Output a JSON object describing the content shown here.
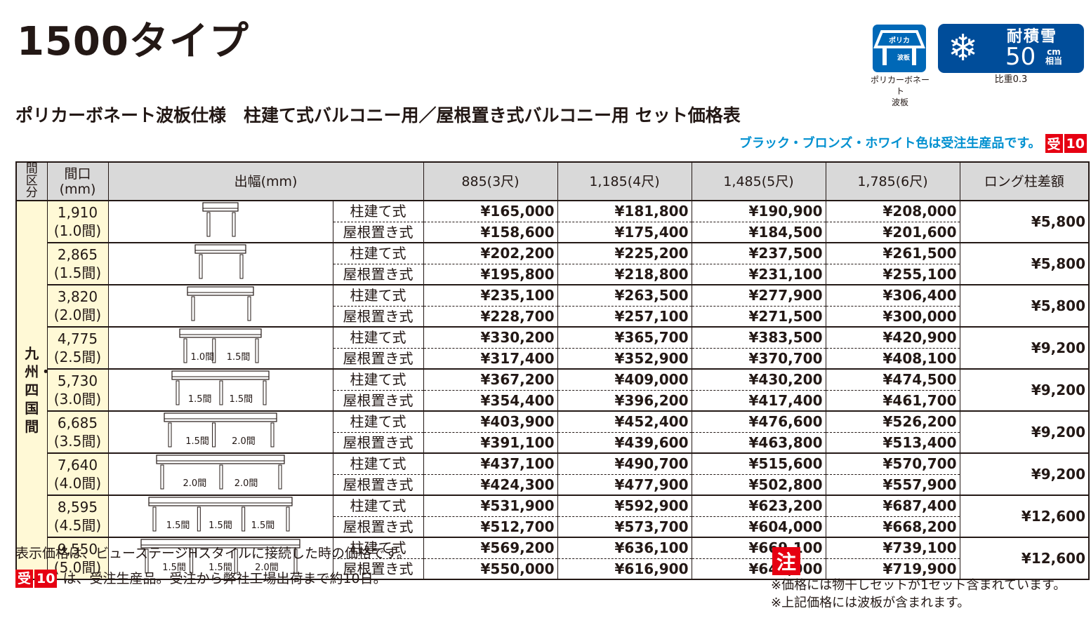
{
  "header": {
    "title": "1500タイプ",
    "subtitle": "ポリカーボネート波板仕様　柱建て式バルコニー用／屋根置き式バルコニー用 セット価格表",
    "order_note": "ブラック・ブロンズ・ホワイト色は受注生産品です。",
    "order_tag": {
      "kanji": "受",
      "days": "10"
    }
  },
  "badges": {
    "polycarbonate": {
      "roof_label": "ポリカ",
      "panel_label": "波板",
      "caption_line1": "ポリカーボネート",
      "caption_line2": "波板",
      "icon": "polycarbonate-roof-icon"
    },
    "snow": {
      "title": "耐積雪",
      "value": "50",
      "unit_top": "cm",
      "unit_bottom": "相当",
      "caption": "比重0.3",
      "icon": "snowflake-icon",
      "glyph": "❄"
    }
  },
  "colors": {
    "brand_blue": "#0068b7",
    "snow_blue": "#004d9a",
    "accent_cyan": "#0090d0",
    "tag_red": "#e60012",
    "region_bg": "#fff9d6",
    "header_bg": "#d9d9d9"
  },
  "table": {
    "headers": {
      "region": "間区分",
      "width": [
        "間口",
        "(mm)"
      ],
      "projection": "出幅(mm)",
      "columns": [
        "885(3尺)",
        "1,185(4尺)",
        "1,485(5尺)",
        "1,785(6尺)"
      ],
      "long_post": "ロング柱差額"
    },
    "region_label": "九州・四国間",
    "types": [
      "柱建て式",
      "屋根置き式"
    ],
    "rows": [
      {
        "width": "1,910",
        "ken": "(1.0間)",
        "spans": [],
        "post": [
          "¥165,000",
          "¥181,800",
          "¥190,900",
          "¥208,000"
        ],
        "roof": [
          "¥158,600",
          "¥175,400",
          "¥184,500",
          "¥201,600"
        ],
        "long_post_diff": "¥5,800"
      },
      {
        "width": "2,865",
        "ken": "(1.5間)",
        "spans": [],
        "post": [
          "¥202,200",
          "¥225,200",
          "¥237,500",
          "¥261,500"
        ],
        "roof": [
          "¥195,800",
          "¥218,800",
          "¥231,100",
          "¥255,100"
        ],
        "long_post_diff": "¥5,800"
      },
      {
        "width": "3,820",
        "ken": "(2.0間)",
        "spans": [],
        "post": [
          "¥235,100",
          "¥263,500",
          "¥277,900",
          "¥306,400"
        ],
        "roof": [
          "¥228,700",
          "¥257,100",
          "¥271,500",
          "¥300,000"
        ],
        "long_post_diff": "¥5,800"
      },
      {
        "width": "4,775",
        "ken": "(2.5間)",
        "spans": [
          "1.0間",
          "1.5間"
        ],
        "post": [
          "¥330,200",
          "¥365,700",
          "¥383,500",
          "¥420,900"
        ],
        "roof": [
          "¥317,400",
          "¥352,900",
          "¥370,700",
          "¥408,100"
        ],
        "long_post_diff": "¥9,200"
      },
      {
        "width": "5,730",
        "ken": "(3.0間)",
        "spans": [
          "1.5間",
          "1.5間"
        ],
        "post": [
          "¥367,200",
          "¥409,000",
          "¥430,200",
          "¥474,500"
        ],
        "roof": [
          "¥354,400",
          "¥396,200",
          "¥417,400",
          "¥461,700"
        ],
        "long_post_diff": "¥9,200"
      },
      {
        "width": "6,685",
        "ken": "(3.5間)",
        "spans": [
          "1.5間",
          "2.0間"
        ],
        "post": [
          "¥403,900",
          "¥452,400",
          "¥476,600",
          "¥526,200"
        ],
        "roof": [
          "¥391,100",
          "¥439,600",
          "¥463,800",
          "¥513,400"
        ],
        "long_post_diff": "¥9,200"
      },
      {
        "width": "7,640",
        "ken": "(4.0間)",
        "spans": [
          "2.0間",
          "2.0間"
        ],
        "post": [
          "¥437,100",
          "¥490,700",
          "¥515,600",
          "¥570,700"
        ],
        "roof": [
          "¥424,300",
          "¥477,900",
          "¥502,800",
          "¥557,900"
        ],
        "long_post_diff": "¥9,200"
      },
      {
        "width": "8,595",
        "ken": "(4.5間)",
        "spans": [
          "1.5間",
          "1.5間",
          "1.5間"
        ],
        "post": [
          "¥531,900",
          "¥592,900",
          "¥623,200",
          "¥687,400"
        ],
        "roof": [
          "¥512,700",
          "¥573,700",
          "¥604,000",
          "¥668,200"
        ],
        "long_post_diff": "¥12,600"
      },
      {
        "width": "9,550",
        "ken": "(5.0間)",
        "spans": [
          "1.5間",
          "1.5間",
          "2.0間"
        ],
        "post": [
          "¥569,200",
          "¥636,100",
          "¥669,100",
          "¥739,100"
        ],
        "roof": [
          "¥550,000",
          "¥616,900",
          "¥649,900",
          "¥719,900"
        ],
        "long_post_diff": "¥12,600"
      }
    ]
  },
  "footer": {
    "note1": "表示価格は、ビューステージHスタイルに接続した時の価格です。",
    "note2": "は、受注生産品。受注から弊社工場出荷まで約10日。",
    "caution_label": "注",
    "caution_lines": [
      "※価格には物干しセットが1セット含まれています。",
      "※上記価格には波板が含まれます。"
    ]
  }
}
